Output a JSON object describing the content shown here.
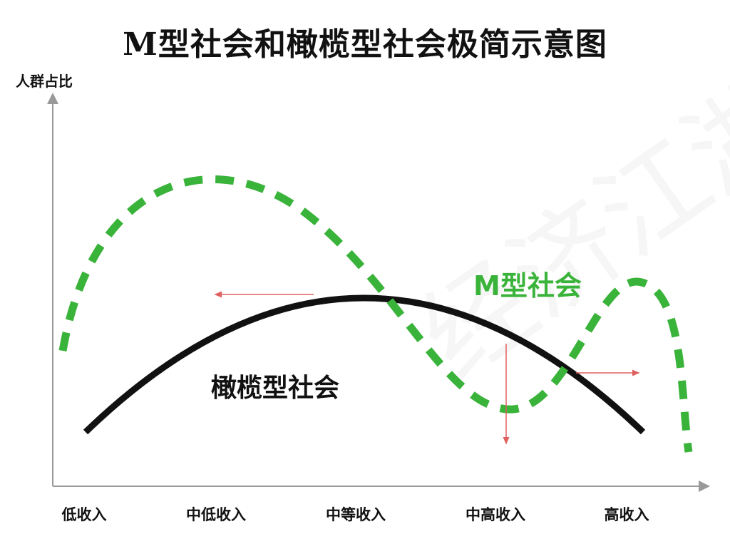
{
  "title": "M型社会和橄榄型社会极简示意图",
  "y_axis_label": "人群占比",
  "x_axis_categories": [
    "低收入",
    "中低收入",
    "中等收入",
    "中高收入",
    "高收入"
  ],
  "curves": {
    "m_society": {
      "label": "M型社会",
      "color": "#3ab33a",
      "style": "dashed"
    },
    "olive_society": {
      "label": "橄榄型社会",
      "color": "#111111",
      "style": "solid"
    }
  },
  "arrow_color": "#e06060",
  "axis_color": "#888888",
  "watermark": "经济江湖"
}
